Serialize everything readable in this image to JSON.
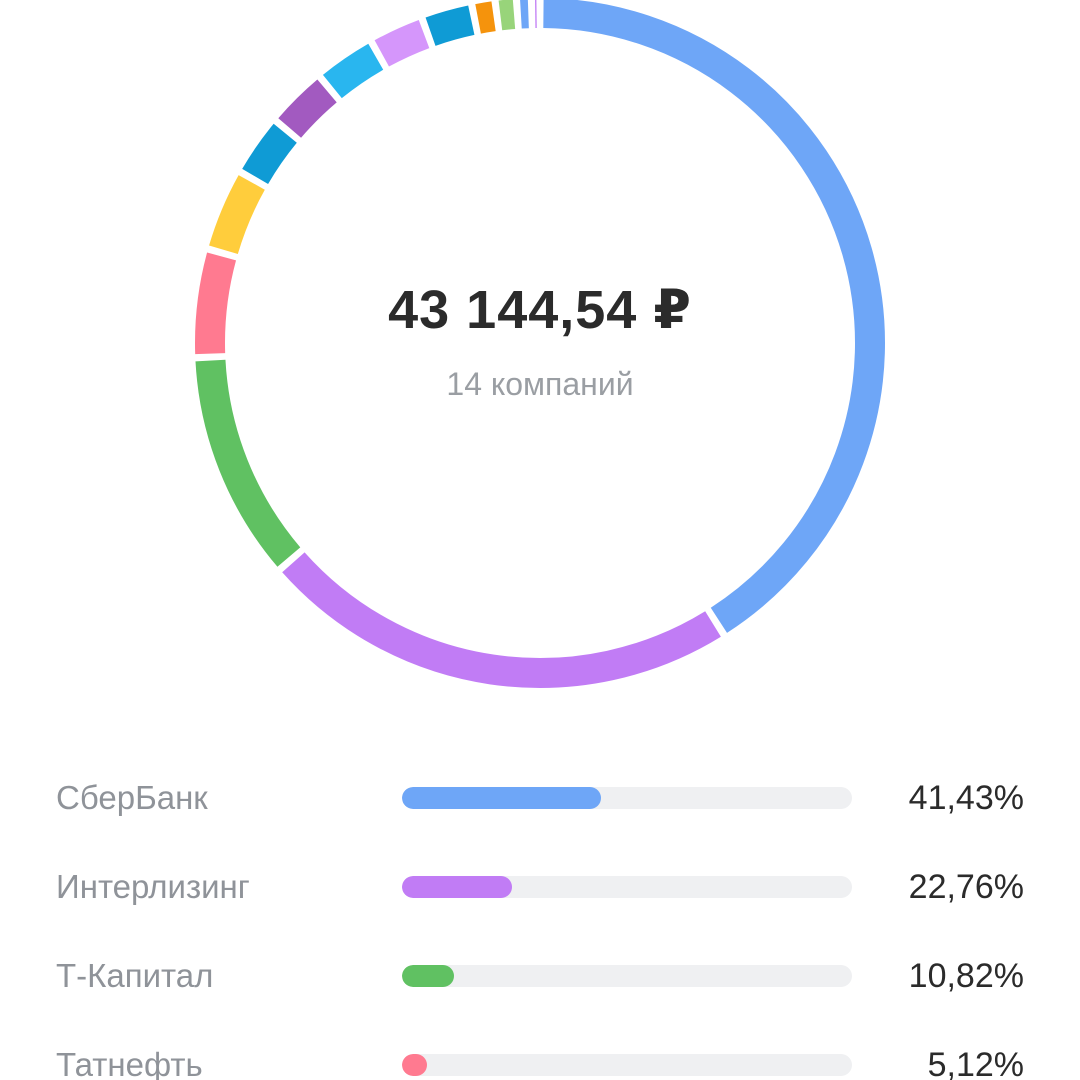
{
  "summary": {
    "total": "43 144,54 ₽",
    "count_label": "14 компаний"
  },
  "chart_data": {
    "type": "donut",
    "slices": [
      {
        "value": 41.43,
        "color": "#6ea6f7"
      },
      {
        "value": 22.76,
        "color": "#c17cf5"
      },
      {
        "value": 10.82,
        "color": "#60c162"
      },
      {
        "value": 5.12,
        "color": "#ff7a90"
      },
      {
        "value": 3.9,
        "color": "#ffcd3c"
      },
      {
        "value": 2.9,
        "color": "#0f9bd5"
      },
      {
        "value": 2.9,
        "color": "#a25ac0"
      },
      {
        "value": 2.9,
        "color": "#29b6ef"
      },
      {
        "value": 2.6,
        "color": "#d596fb"
      },
      {
        "value": 2.4,
        "color": "#0f9bd5"
      },
      {
        "value": 1.1,
        "color": "#f5930c"
      },
      {
        "value": 1.0,
        "color": "#98d47a"
      },
      {
        "value": 0.7,
        "color": "#6ea6f7"
      },
      {
        "value": 0.4,
        "color": "#c17cf5"
      }
    ],
    "legend": [
      {
        "label": "СберБанк",
        "percent_label": "41,43%",
        "value": 41.43,
        "color": "#6ea6f7"
      },
      {
        "label": "Интерлизинг",
        "percent_label": "22,76%",
        "value": 22.76,
        "color": "#c17cf5"
      },
      {
        "label": "Т-Капитал",
        "percent_label": "10,82%",
        "value": 10.82,
        "color": "#60c162"
      },
      {
        "label": "Татнефть",
        "percent_label": "5,12%",
        "value": 5.12,
        "color": "#ff7a90"
      }
    ]
  }
}
